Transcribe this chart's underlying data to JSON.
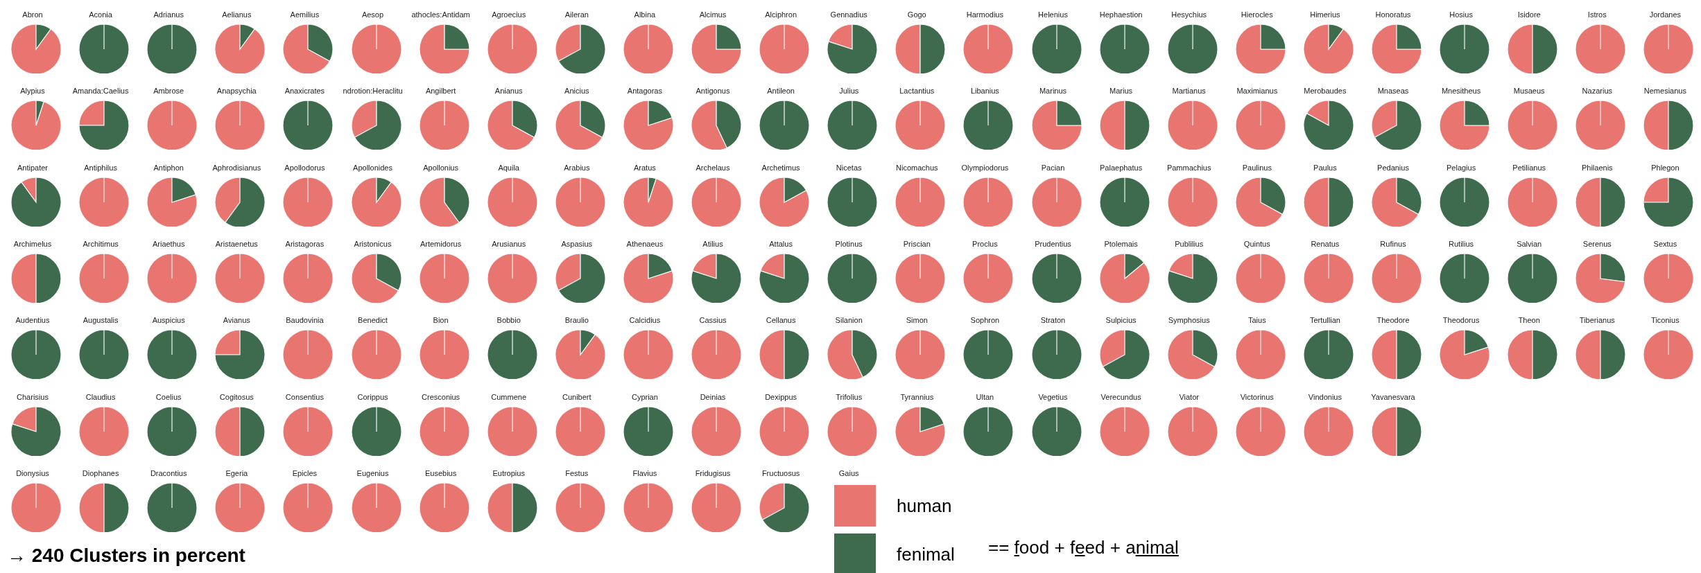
{
  "chart_data": {
    "type": "pie",
    "categories": [
      "human",
      "fenimal"
    ],
    "colors": [
      "#e8756f",
      "#3e6b4e"
    ],
    "legend": "bottom",
    "annotations": [
      "== food + feed + animal",
      "→ 240 Clusters in percent",
      "Gaius"
    ],
    "series": [
      {
        "name": "Abron",
        "values": [
          90,
          10
        ]
      },
      {
        "name": "Aconia",
        "values": [
          0,
          100
        ]
      },
      {
        "name": "Adrianus",
        "values": [
          0,
          100
        ]
      },
      {
        "name": "Aelianus",
        "values": [
          90,
          10
        ]
      },
      {
        "name": "Aemilius",
        "values": [
          67,
          33
        ]
      },
      {
        "name": "Aesop",
        "values": [
          100,
          0
        ]
      },
      {
        "name": "athocles:Antidam",
        "values": [
          75,
          25
        ]
      },
      {
        "name": "Agroecius",
        "values": [
          100,
          0
        ]
      },
      {
        "name": "Aileran",
        "values": [
          33,
          67
        ]
      },
      {
        "name": "Albina",
        "values": [
          100,
          0
        ]
      },
      {
        "name": "Alcimus",
        "values": [
          75,
          25
        ]
      },
      {
        "name": "Alciphron",
        "values": [
          100,
          0
        ]
      },
      {
        "name": "Gennadius",
        "values": [
          20,
          80
        ]
      },
      {
        "name": "Gogo",
        "values": [
          50,
          50
        ]
      },
      {
        "name": "Harmodius",
        "values": [
          100,
          0
        ]
      },
      {
        "name": "Helenius",
        "values": [
          0,
          100
        ]
      },
      {
        "name": "Hephaestion",
        "values": [
          0,
          100
        ]
      },
      {
        "name": "Hesychius",
        "values": [
          0,
          100
        ]
      },
      {
        "name": "Hierocles",
        "values": [
          75,
          25
        ]
      },
      {
        "name": "Himerius",
        "values": [
          90,
          10
        ]
      },
      {
        "name": "Honoratus",
        "values": [
          75,
          25
        ]
      },
      {
        "name": "Hosius",
        "values": [
          0,
          100
        ]
      },
      {
        "name": "Isidore",
        "values": [
          50,
          50
        ]
      },
      {
        "name": "Istros",
        "values": [
          100,
          0
        ]
      },
      {
        "name": "Jordanes",
        "values": [
          100,
          0
        ]
      },
      {
        "name": "Alypius",
        "values": [
          95,
          5
        ]
      },
      {
        "name": "Amanda:Caelius",
        "values": [
          25,
          75
        ]
      },
      {
        "name": "Ambrose",
        "values": [
          100,
          0
        ]
      },
      {
        "name": "Anapsychia",
        "values": [
          100,
          0
        ]
      },
      {
        "name": "Anaxicrates",
        "values": [
          0,
          100
        ]
      },
      {
        "name": "ndrotion:Heraclitu",
        "values": [
          33,
          67
        ]
      },
      {
        "name": "Angilbert",
        "values": [
          100,
          0
        ]
      },
      {
        "name": "Anianus",
        "values": [
          67,
          33
        ]
      },
      {
        "name": "Anicius",
        "values": [
          67,
          33
        ]
      },
      {
        "name": "Antagoras",
        "values": [
          80,
          20
        ]
      },
      {
        "name": "Antigonus",
        "values": [
          57,
          43
        ]
      },
      {
        "name": "Antileon",
        "values": [
          0,
          100
        ]
      },
      {
        "name": "Julius",
        "values": [
          0,
          100
        ]
      },
      {
        "name": "Lactantius",
        "values": [
          100,
          0
        ]
      },
      {
        "name": "Libanius",
        "values": [
          0,
          100
        ]
      },
      {
        "name": "Marinus",
        "values": [
          75,
          25
        ]
      },
      {
        "name": "Marius",
        "values": [
          50,
          50
        ]
      },
      {
        "name": "Martianus",
        "values": [
          100,
          0
        ]
      },
      {
        "name": "Maximianus",
        "values": [
          100,
          0
        ]
      },
      {
        "name": "Merobaudes",
        "values": [
          17,
          83
        ]
      },
      {
        "name": "Mnaseas",
        "values": [
          33,
          67
        ]
      },
      {
        "name": "Mnesitheus",
        "values": [
          75,
          25
        ]
      },
      {
        "name": "Musaeus",
        "values": [
          100,
          0
        ]
      },
      {
        "name": "Nazarius",
        "values": [
          100,
          0
        ]
      },
      {
        "name": "Nemesianus",
        "values": [
          50,
          50
        ]
      },
      {
        "name": "Antipater",
        "values": [
          10,
          90
        ]
      },
      {
        "name": "Antiphilus",
        "values": [
          100,
          0
        ]
      },
      {
        "name": "Antiphon",
        "values": [
          80,
          20
        ]
      },
      {
        "name": "Aphrodisianus",
        "values": [
          40,
          60
        ]
      },
      {
        "name": "Apollodorus",
        "values": [
          100,
          0
        ]
      },
      {
        "name": "Apollonides",
        "values": [
          90,
          10
        ]
      },
      {
        "name": "Apollonius",
        "values": [
          60,
          40
        ]
      },
      {
        "name": "Aquila",
        "values": [
          100,
          0
        ]
      },
      {
        "name": "Arabius",
        "values": [
          100,
          0
        ]
      },
      {
        "name": "Aratus",
        "values": [
          95,
          5
        ]
      },
      {
        "name": "Archelaus",
        "values": [
          100,
          0
        ]
      },
      {
        "name": "Archetimus",
        "values": [
          83,
          17
        ]
      },
      {
        "name": "Nicetas",
        "values": [
          0,
          100
        ]
      },
      {
        "name": "Nicomachus",
        "values": [
          100,
          0
        ]
      },
      {
        "name": "Olympiodorus",
        "values": [
          100,
          0
        ]
      },
      {
        "name": "Pacian",
        "values": [
          100,
          0
        ]
      },
      {
        "name": "Palaephatus",
        "values": [
          0,
          100
        ]
      },
      {
        "name": "Pammachius",
        "values": [
          100,
          0
        ]
      },
      {
        "name": "Paulinus",
        "values": [
          67,
          33
        ]
      },
      {
        "name": "Paulus",
        "values": [
          50,
          50
        ]
      },
      {
        "name": "Pedanius",
        "values": [
          67,
          33
        ]
      },
      {
        "name": "Pelagius",
        "values": [
          0,
          100
        ]
      },
      {
        "name": "Petilianus",
        "values": [
          100,
          0
        ]
      },
      {
        "name": "Philaenis",
        "values": [
          50,
          50
        ]
      },
      {
        "name": "Phlegon",
        "values": [
          25,
          75
        ]
      },
      {
        "name": "Archimelus",
        "values": [
          50,
          50
        ]
      },
      {
        "name": "Architimus",
        "values": [
          100,
          0
        ]
      },
      {
        "name": "Ariaethus",
        "values": [
          100,
          0
        ]
      },
      {
        "name": "Aristaenetus",
        "values": [
          100,
          0
        ]
      },
      {
        "name": "Aristagoras",
        "values": [
          100,
          0
        ]
      },
      {
        "name": "Aristonicus",
        "values": [
          67,
          33
        ]
      },
      {
        "name": "Artemidorus",
        "values": [
          100,
          0
        ]
      },
      {
        "name": "Arusianus",
        "values": [
          100,
          0
        ]
      },
      {
        "name": "Aspasius",
        "values": [
          33,
          67
        ]
      },
      {
        "name": "Athenaeus",
        "values": [
          80,
          20
        ]
      },
      {
        "name": "Atilius",
        "values": [
          20,
          80
        ]
      },
      {
        "name": "Attalus",
        "values": [
          20,
          80
        ]
      },
      {
        "name": "Plotinus",
        "values": [
          0,
          100
        ]
      },
      {
        "name": "Priscian",
        "values": [
          100,
          0
        ]
      },
      {
        "name": "Proclus",
        "values": [
          100,
          0
        ]
      },
      {
        "name": "Prudentius",
        "values": [
          0,
          100
        ]
      },
      {
        "name": "Ptolemais",
        "values": [
          86,
          14
        ]
      },
      {
        "name": "Publilius",
        "values": [
          20,
          80
        ]
      },
      {
        "name": "Quintus",
        "values": [
          100,
          0
        ]
      },
      {
        "name": "Renatus",
        "values": [
          100,
          0
        ]
      },
      {
        "name": "Rufinus",
        "values": [
          100,
          0
        ]
      },
      {
        "name": "Rutilius",
        "values": [
          0,
          100
        ]
      },
      {
        "name": "Salvian",
        "values": [
          0,
          100
        ]
      },
      {
        "name": "Serenus",
        "values": [
          73,
          27
        ]
      },
      {
        "name": "Sextus",
        "values": [
          100,
          0
        ]
      },
      {
        "name": "Audentius",
        "values": [
          0,
          100
        ]
      },
      {
        "name": "Augustalis",
        "values": [
          0,
          100
        ]
      },
      {
        "name": "Auspicius",
        "values": [
          0,
          100
        ]
      },
      {
        "name": "Avianus",
        "values": [
          25,
          75
        ]
      },
      {
        "name": "Baudovinia",
        "values": [
          100,
          0
        ]
      },
      {
        "name": "Benedict",
        "values": [
          100,
          0
        ]
      },
      {
        "name": "Bion",
        "values": [
          100,
          0
        ]
      },
      {
        "name": "Bobbio",
        "values": [
          0,
          100
        ]
      },
      {
        "name": "Braulio",
        "values": [
          90,
          10
        ]
      },
      {
        "name": "Calcidius",
        "values": [
          100,
          0
        ]
      },
      {
        "name": "Cassius",
        "values": [
          100,
          0
        ]
      },
      {
        "name": "Cellanus",
        "values": [
          50,
          50
        ]
      },
      {
        "name": "Silanion",
        "values": [
          57,
          43
        ]
      },
      {
        "name": "Simon",
        "values": [
          100,
          0
        ]
      },
      {
        "name": "Sophron",
        "values": [
          0,
          100
        ]
      },
      {
        "name": "Straton",
        "values": [
          0,
          100
        ]
      },
      {
        "name": "Sulpicius",
        "values": [
          33,
          67
        ]
      },
      {
        "name": "Symphosius",
        "values": [
          67,
          33
        ]
      },
      {
        "name": "Taius",
        "values": [
          100,
          0
        ]
      },
      {
        "name": "Tertullian",
        "values": [
          0,
          100
        ]
      },
      {
        "name": "Theodore",
        "values": [
          50,
          50
        ]
      },
      {
        "name": "Theodorus",
        "values": [
          80,
          20
        ]
      },
      {
        "name": "Theon",
        "values": [
          50,
          50
        ]
      },
      {
        "name": "Tiberianus",
        "values": [
          50,
          50
        ]
      },
      {
        "name": "Ticonius",
        "values": [
          100,
          0
        ]
      },
      {
        "name": "Charisius",
        "values": [
          20,
          80
        ]
      },
      {
        "name": "Claudius",
        "values": [
          100,
          0
        ]
      },
      {
        "name": "Coelius",
        "values": [
          0,
          100
        ]
      },
      {
        "name": "Cogitosus",
        "values": [
          50,
          50
        ]
      },
      {
        "name": "Consentius",
        "values": [
          100,
          0
        ]
      },
      {
        "name": "Corippus",
        "values": [
          0,
          100
        ]
      },
      {
        "name": "Cresconius",
        "values": [
          100,
          0
        ]
      },
      {
        "name": "Cummene",
        "values": [
          100,
          0
        ]
      },
      {
        "name": "Cunibert",
        "values": [
          100,
          0
        ]
      },
      {
        "name": "Cyprian",
        "values": [
          0,
          100
        ]
      },
      {
        "name": "Deinias",
        "values": [
          100,
          0
        ]
      },
      {
        "name": "Dexippus",
        "values": [
          100,
          0
        ]
      },
      {
        "name": "Trifolius",
        "values": [
          100,
          0
        ]
      },
      {
        "name": "Tyrannius",
        "values": [
          80,
          20
        ]
      },
      {
        "name": "Ultan",
        "values": [
          0,
          100
        ]
      },
      {
        "name": "Vegetius",
        "values": [
          0,
          100
        ]
      },
      {
        "name": "Verecundus",
        "values": [
          100,
          0
        ]
      },
      {
        "name": "Viator",
        "values": [
          100,
          0
        ]
      },
      {
        "name": "Victorinus",
        "values": [
          100,
          0
        ]
      },
      {
        "name": "Vindonius",
        "values": [
          100,
          0
        ]
      },
      {
        "name": "Yavanesvara",
        "values": [
          50,
          50
        ]
      },
      {
        "name": "Dionysius",
        "values": [
          100,
          0
        ]
      },
      {
        "name": "Diophanes",
        "values": [
          50,
          50
        ]
      },
      {
        "name": "Dracontius",
        "values": [
          0,
          100
        ]
      },
      {
        "name": "Egeria",
        "values": [
          100,
          0
        ]
      },
      {
        "name": "Epicles",
        "values": [
          100,
          0
        ]
      },
      {
        "name": "Eugenius",
        "values": [
          100,
          0
        ]
      },
      {
        "name": "Eusebius",
        "values": [
          100,
          0
        ]
      },
      {
        "name": "Eutropius",
        "values": [
          50,
          50
        ]
      },
      {
        "name": "Festus",
        "values": [
          100,
          0
        ]
      },
      {
        "name": "Flavius",
        "values": [
          100,
          0
        ]
      },
      {
        "name": "Fridugisus",
        "values": [
          100,
          0
        ]
      },
      {
        "name": "Fructuosus",
        "values": [
          33,
          67
        ]
      }
    ]
  }
}
